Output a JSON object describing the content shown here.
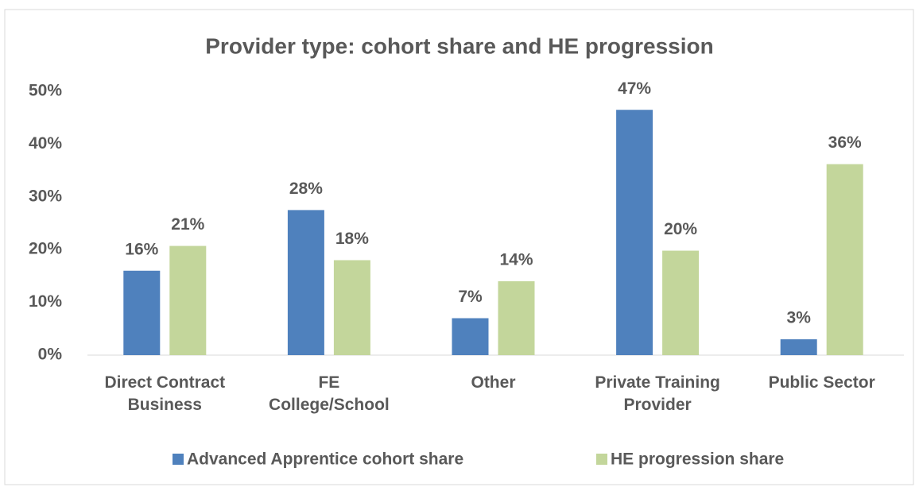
{
  "chart_data": {
    "type": "bar",
    "title": "Provider type: cohort share and HE progression",
    "categories": [
      "Direct Contract Business",
      "FE College/School",
      "Other",
      "Private Training Provider",
      "Public Sector"
    ],
    "series": [
      {
        "name": "Advanced Apprentice cohort share",
        "color": "#4f81bd",
        "values": [
          16,
          27.5,
          7,
          46.5,
          3
        ],
        "value_labels": [
          "16%",
          "28%",
          "7%",
          "47%",
          "3%"
        ]
      },
      {
        "name": "HE progression share",
        "color": "#c3d69b",
        "values": [
          20.7,
          18,
          14,
          19.8,
          36.2
        ],
        "value_labels": [
          "21%",
          "18%",
          "14%",
          "20%",
          "36%"
        ]
      }
    ],
    "ylim": [
      0,
      50
    ],
    "yticks": [
      {
        "value": 0,
        "label": "0%"
      },
      {
        "value": 10,
        "label": "10%"
      },
      {
        "value": 20,
        "label": "20%"
      },
      {
        "value": 30,
        "label": "30%"
      },
      {
        "value": 40,
        "label": "40%"
      },
      {
        "value": 50,
        "label": "50%"
      }
    ],
    "grid": false,
    "legend": "bottom"
  }
}
